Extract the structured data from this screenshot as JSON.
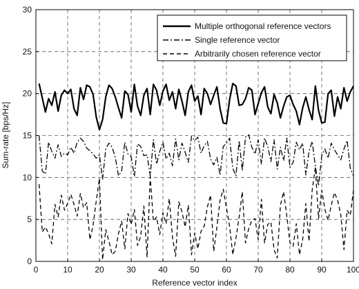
{
  "chart_data": {
    "type": "line",
    "title": "",
    "xlabel": "Reference vector index",
    "ylabel": "Sum-rate [bps/Hz]",
    "xlim": [
      0,
      100
    ],
    "ylim": [
      0,
      30
    ],
    "xticks": [
      "0",
      "10",
      "20",
      "30",
      "40",
      "50",
      "60",
      "70",
      "80",
      "90",
      "100"
    ],
    "yticks": [
      "0",
      "5",
      "10",
      "15",
      "20",
      "25",
      "30"
    ],
    "grid": true,
    "legend_position": "top-right",
    "x": [
      1,
      2,
      3,
      4,
      5,
      6,
      7,
      8,
      9,
      10,
      11,
      12,
      13,
      14,
      15,
      16,
      17,
      18,
      19,
      20,
      21,
      22,
      23,
      24,
      25,
      26,
      27,
      28,
      29,
      30,
      31,
      32,
      33,
      34,
      35,
      36,
      37,
      38,
      39,
      40,
      41,
      42,
      43,
      44,
      45,
      46,
      47,
      48,
      49,
      50,
      51,
      52,
      53,
      54,
      55,
      56,
      57,
      58,
      59,
      60,
      61,
      62,
      63,
      64,
      65,
      66,
      67,
      68,
      69,
      70,
      71,
      72,
      73,
      74,
      75,
      76,
      77,
      78,
      79,
      80,
      81,
      82,
      83,
      84,
      85,
      86,
      87,
      88,
      89,
      90,
      91,
      92,
      93,
      94,
      95,
      96,
      97,
      98,
      99,
      100
    ],
    "series": [
      {
        "name": "Multiple orthogonal reference vectors",
        "style": "solid",
        "color": "#000000",
        "values": [
          21.2,
          19.5,
          17.8,
          19.4,
          18.6,
          20.2,
          17.9,
          19.8,
          20.4,
          20.0,
          20.5,
          18.2,
          17.4,
          20.7,
          19.3,
          21.0,
          20.8,
          19.9,
          17.2,
          15.7,
          16.9,
          19.6,
          21.0,
          20.6,
          19.6,
          18.3,
          17.1,
          20.3,
          19.9,
          17.8,
          21.1,
          18.5,
          17.4,
          19.8,
          20.6,
          17.5,
          21.1,
          20.4,
          18.6,
          20.3,
          21.1,
          19.2,
          20.2,
          18.2,
          20.5,
          19.1,
          17.4,
          20.2,
          21.0,
          19.1,
          19.7,
          17.5,
          20.6,
          20.0,
          18.7,
          19.8,
          20.8,
          18.2,
          16.5,
          16.4,
          19.3,
          21.2,
          20.9,
          18.6,
          18.7,
          19.4,
          20.7,
          20.4,
          17.5,
          18.8,
          20.1,
          20.8,
          18.4,
          17.6,
          19.9,
          18.9,
          17.1,
          18.5,
          19.6,
          19.8,
          18.7,
          17.9,
          16.3,
          18.3,
          19.6,
          18.1,
          16.9,
          20.9,
          18.0,
          16.5,
          16.6,
          20.0,
          20.4,
          17.3,
          19.6,
          18.2,
          20.7,
          19.1,
          20.2,
          20.9
        ]
      },
      {
        "name": "Single reference vector",
        "style": "dash-dot",
        "color": "#000000",
        "values": [
          15.0,
          10.8,
          10.4,
          14.2,
          13.1,
          12.3,
          13.9,
          12.5,
          12.9,
          12.7,
          13.6,
          12.9,
          14.2,
          14.7,
          14.3,
          13.5,
          13.2,
          12.8,
          12.3,
          12.7,
          9.8,
          13.4,
          14.1,
          13.6,
          12.4,
          10.2,
          10.8,
          14.2,
          12.8,
          12.5,
          10.1,
          14.0,
          13.7,
          12.6,
          12.7,
          10.2,
          14.5,
          11.6,
          13.1,
          14.2,
          12.2,
          12.9,
          11.4,
          14.6,
          12.1,
          14.1,
          13.0,
          11.8,
          14.9,
          14.4,
          14.8,
          12.9,
          13.8,
          14.3,
          12.2,
          11.5,
          12.4,
          10.3,
          13.7,
          14.1,
          14.7,
          11.1,
          10.2,
          14.4,
          10.8,
          14.8,
          15.1,
          13.6,
          12.8,
          14.5,
          11.6,
          14.7,
          13.7,
          11.9,
          14.5,
          11.0,
          13.6,
          12.0,
          14.7,
          11.2,
          11.8,
          14.2,
          13.3,
          14.1,
          10.3,
          13.1,
          14.3,
          11.3,
          9.0,
          12.6,
          13.4,
          12.3,
          14.1,
          13.3,
          12.7,
          12.1,
          13.4,
          14.4,
          11.1,
          10.2
        ]
      },
      {
        "name": "Arbitrarily chosen reference vector",
        "style": "dashed",
        "color": "#000000",
        "values": [
          9.2,
          3.5,
          4.1,
          3.3,
          2.1,
          6.8,
          5.3,
          7.9,
          6.1,
          6.9,
          8.0,
          6.8,
          5.4,
          8.1,
          6.4,
          7.0,
          2.6,
          4.3,
          7.2,
          9.9,
          0.2,
          3.8,
          2.4,
          0.8,
          1.2,
          3.3,
          4.8,
          1.5,
          5.7,
          4.4,
          6.2,
          1.9,
          3.0,
          6.6,
          0.5,
          10.1,
          4.8,
          5.3,
          3.2,
          5.8,
          4.5,
          7.5,
          2.9,
          0.6,
          7.1,
          5.9,
          4.1,
          6.7,
          0.8,
          3.4,
          1.5,
          3.6,
          4.2,
          6.5,
          7.9,
          1.2,
          4.1,
          7.3,
          8.6,
          6.4,
          4.2,
          0.8,
          2.8,
          5.3,
          8.3,
          2.2,
          3.9,
          4.9,
          5.1,
          2.6,
          7.4,
          2.2,
          4.4,
          4.7,
          1.4,
          0.4,
          6.7,
          8.3,
          5.4,
          2.2,
          1.8,
          4.5,
          0.8,
          2.6,
          6.9,
          2.4,
          8.5,
          11.2,
          5.1,
          8.5,
          6.2,
          4.9,
          6.7,
          8.2,
          7.3,
          5.6,
          1.4,
          6.1,
          5.5,
          8.5
        ]
      }
    ]
  }
}
